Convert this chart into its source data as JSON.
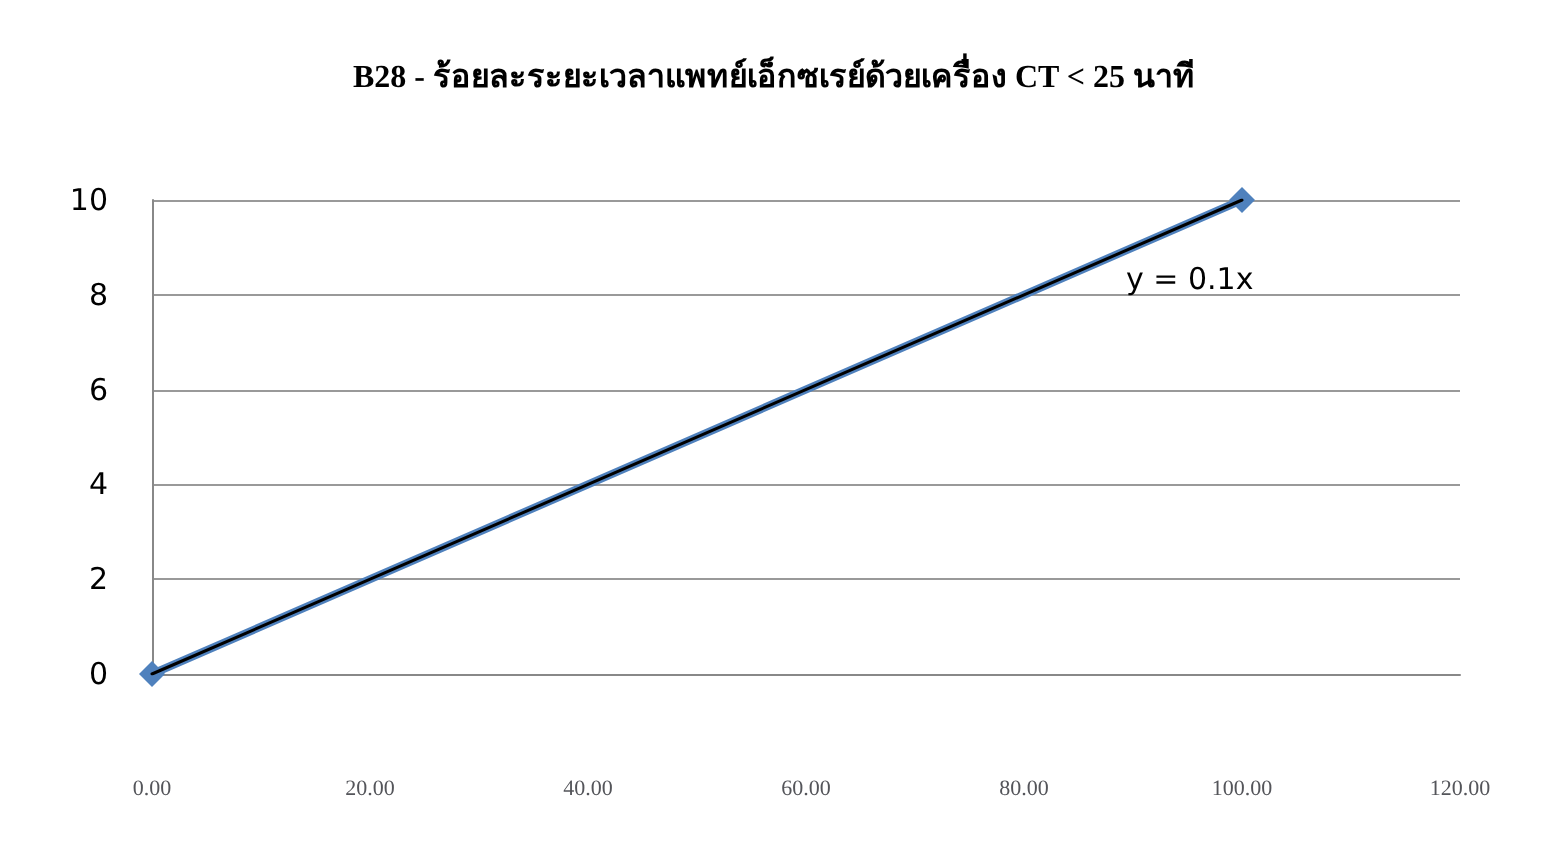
{
  "chart_data": {
    "type": "line",
    "title": "B28 - ร้อยละระยะเวลาแพทย์เอ็กซเรย์ด้วยเครื่อง CT < 25 นาที",
    "annotations": [
      {
        "text": "y = 0.1x",
        "x": 100,
        "y": 10
      }
    ],
    "series": [
      {
        "color": "#4f81bd",
        "marker": "diamond",
        "values": [
          0,
          10
        ]
      },
      {
        "color": "#000000",
        "marker": "none",
        "values": [
          0,
          10
        ]
      }
    ],
    "x": [
      0,
      100
    ],
    "xlim": [
      0,
      120
    ],
    "xticks": [
      {
        "value": 0,
        "label": "0.00"
      },
      {
        "value": 20,
        "label": "20.00"
      },
      {
        "value": 40,
        "label": "40.00"
      },
      {
        "value": 60,
        "label": "60.00"
      },
      {
        "value": 80,
        "label": "80.00"
      },
      {
        "value": 100,
        "label": "100.00"
      },
      {
        "value": 120,
        "label": "120.00"
      }
    ],
    "ylim": [
      0,
      10
    ],
    "yticks": [
      0,
      2,
      4,
      6,
      8,
      10
    ],
    "grid": "y"
  }
}
